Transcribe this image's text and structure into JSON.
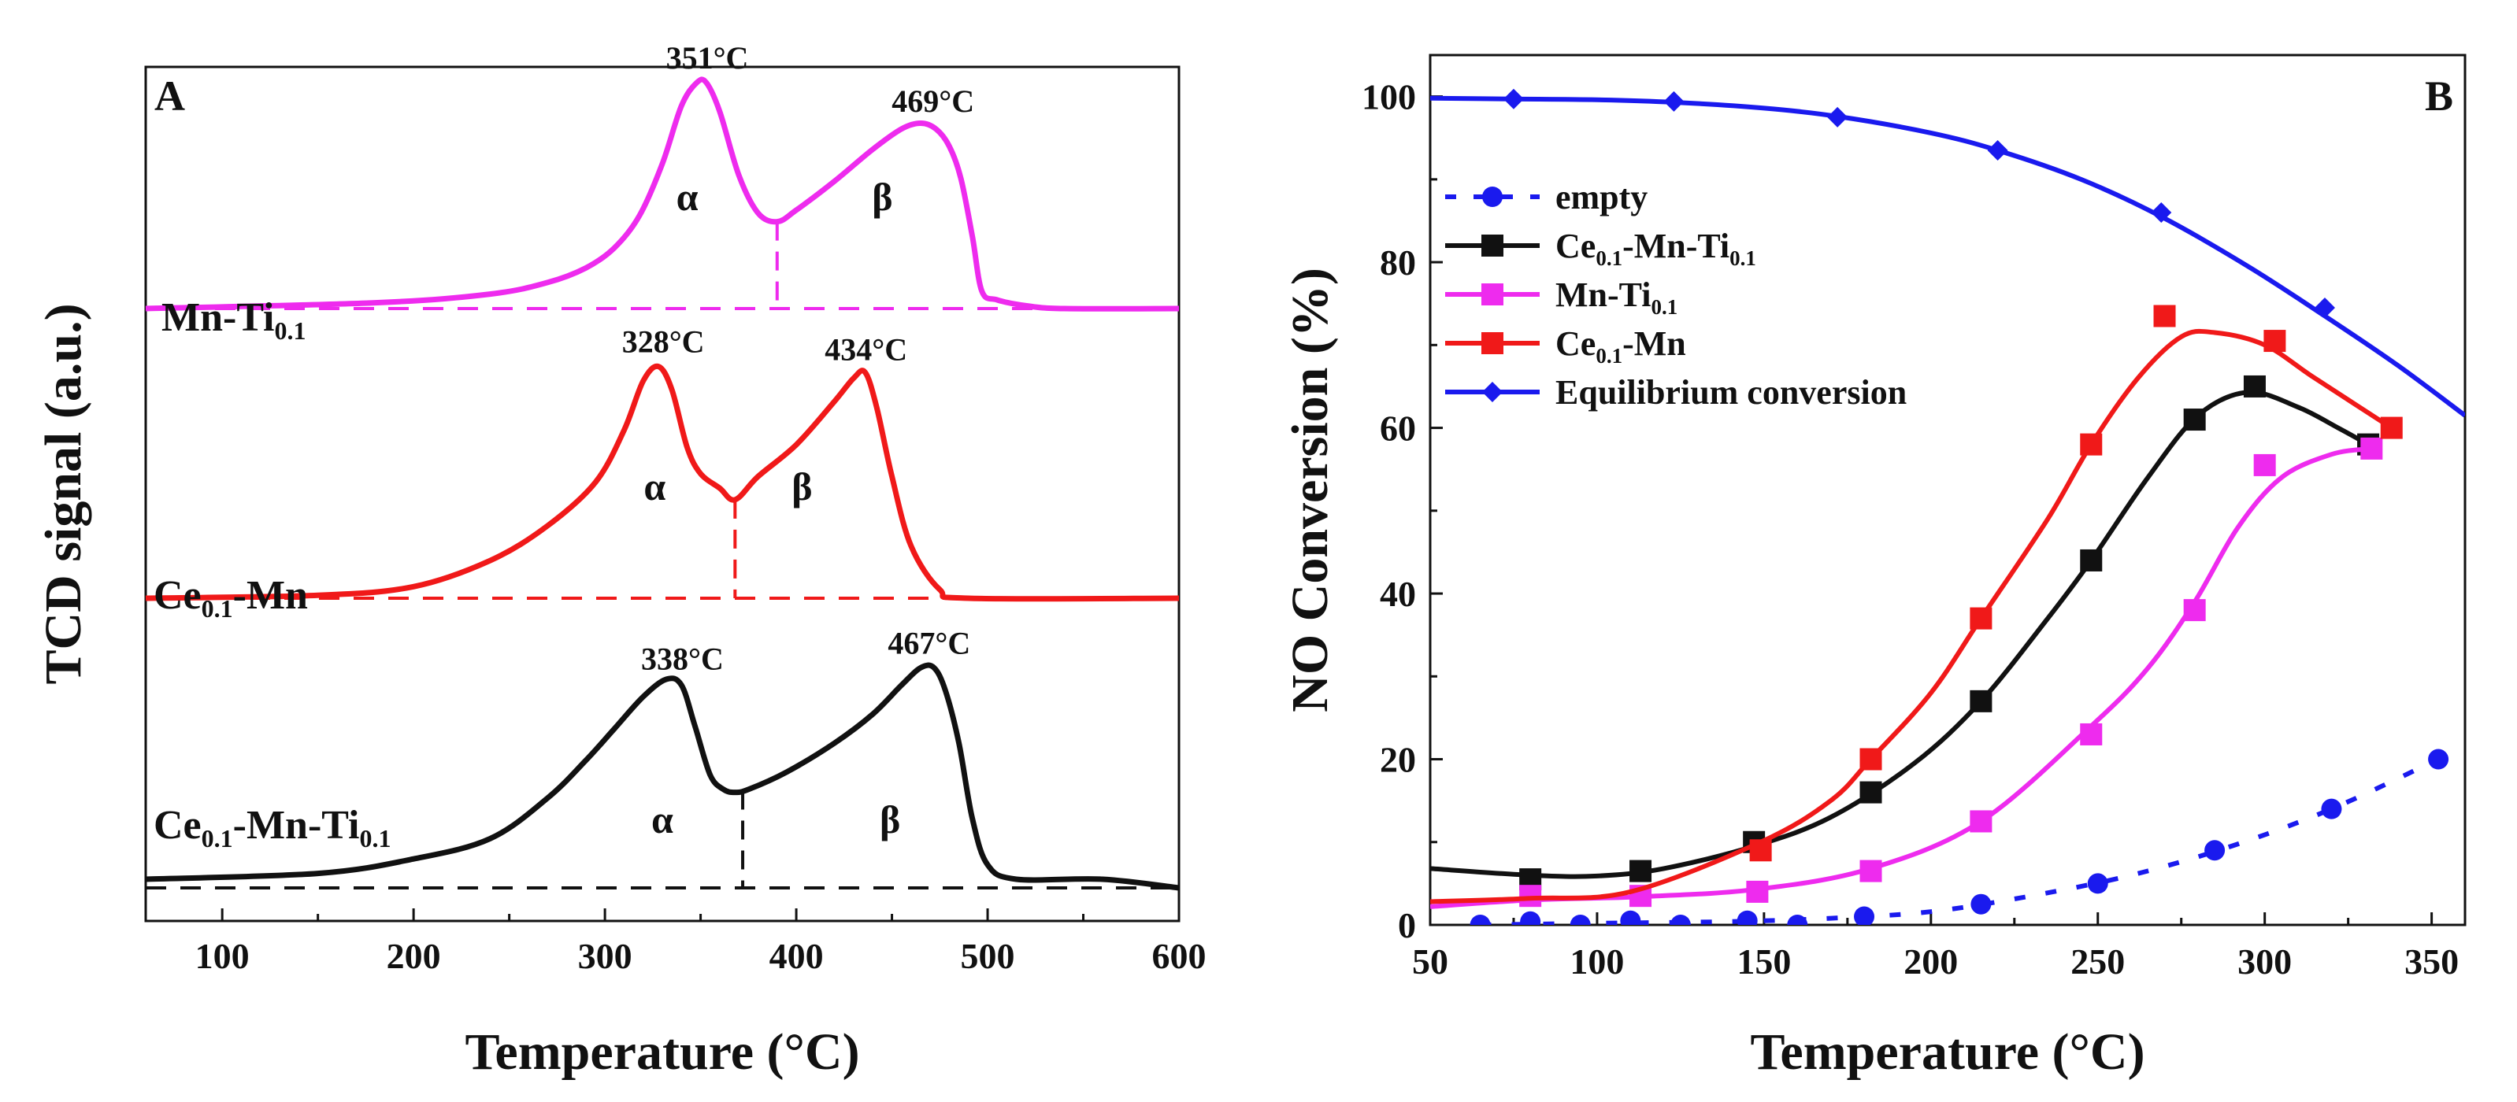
{
  "chart_data": [
    {
      "type": "line",
      "panel_label": "A",
      "title": "",
      "xlabel": "Temperature (°C)",
      "ylabel": "TCD signal (a.u.)",
      "xlim": [
        60,
        600
      ],
      "ylim": [
        0,
        3
      ],
      "xticks": [
        100,
        200,
        300,
        400,
        500,
        600
      ],
      "yticks": [],
      "series": [
        {
          "name_main": "Mn-Ti",
          "name_sub": "0.1",
          "name_tail": "",
          "color": "#ee2bee",
          "baseline": 2.0,
          "x": [
            60,
            180,
            240,
            270,
            290,
            305,
            318,
            330,
            340,
            348,
            353,
            360,
            370,
            380,
            390,
            400,
            420,
            440,
            455,
            465,
            473,
            480,
            486,
            492,
            497,
            505,
            520,
            540,
            600
          ],
          "y": [
            2.0,
            2.02,
            2.05,
            2.09,
            2.14,
            2.21,
            2.32,
            2.5,
            2.7,
            2.78,
            2.78,
            2.68,
            2.46,
            2.33,
            2.3,
            2.34,
            2.44,
            2.55,
            2.62,
            2.64,
            2.62,
            2.56,
            2.45,
            2.25,
            2.06,
            2.03,
            2.01,
            2.0,
            2.0
          ],
          "peaks": [
            {
              "x": 351,
              "label": "351°C"
            },
            {
              "x": 469,
              "label": "469°C"
            }
          ],
          "separator_x": 390,
          "greek_labels": [
            {
              "x": 343,
              "text": "α"
            },
            {
              "x": 445,
              "text": "β"
            }
          ]
        },
        {
          "name_main": "Ce",
          "name_sub": "0.1",
          "name_tail": "-Mn",
          "color": "#f01919",
          "baseline": 1.0,
          "x": [
            60,
            150,
            200,
            240,
            270,
            295,
            310,
            320,
            328,
            335,
            343,
            350,
            360,
            368,
            380,
            400,
            420,
            430,
            436,
            442,
            450,
            460,
            475,
            490,
            600
          ],
          "y": [
            1.0,
            1.01,
            1.04,
            1.13,
            1.25,
            1.4,
            1.58,
            1.75,
            1.8,
            1.72,
            1.52,
            1.43,
            1.38,
            1.34,
            1.42,
            1.53,
            1.68,
            1.76,
            1.78,
            1.66,
            1.42,
            1.18,
            1.03,
            1.0,
            1.0
          ],
          "peaks": [
            {
              "x": 328,
              "label": "328°C"
            },
            {
              "x": 434,
              "label": "434°C"
            }
          ],
          "separator_x": 368,
          "greek_labels": [
            {
              "x": 326,
              "text": "α"
            },
            {
              "x": 403,
              "text": "β"
            }
          ]
        },
        {
          "name_main": "Ce",
          "name_sub": "0.1",
          "name_tail": "-Mn-Ti",
          "name_sub2": "0.1",
          "color": "#111111",
          "baseline": 0.0,
          "x": [
            60,
            150,
            200,
            240,
            270,
            290,
            305,
            320,
            332,
            340,
            347,
            355,
            362,
            368,
            375,
            395,
            420,
            440,
            455,
            465,
            472,
            478,
            485,
            492,
            500,
            515,
            560,
            600
          ],
          "y": [
            0.03,
            0.05,
            0.1,
            0.17,
            0.31,
            0.44,
            0.55,
            0.66,
            0.72,
            0.7,
            0.56,
            0.39,
            0.34,
            0.33,
            0.34,
            0.4,
            0.5,
            0.6,
            0.7,
            0.76,
            0.76,
            0.68,
            0.5,
            0.24,
            0.08,
            0.03,
            0.03,
            0.0
          ],
          "peaks": [
            {
              "x": 338,
              "label": "338°C"
            },
            {
              "x": 467,
              "label": "467°C"
            }
          ],
          "separator_x": 372,
          "greek_labels": [
            {
              "x": 330,
              "text": "α"
            },
            {
              "x": 449,
              "text": "β"
            }
          ]
        }
      ]
    },
    {
      "type": "line",
      "panel_label": "B",
      "title": "",
      "xlabel": "Temperature (°C)",
      "ylabel": "NO Conversion (%)",
      "xlim": [
        50,
        360
      ],
      "ylim": [
        0,
        105
      ],
      "xticks": [
        50,
        100,
        150,
        200,
        250,
        300,
        350
      ],
      "yticks": [
        0,
        20,
        40,
        60,
        80,
        100
      ],
      "legend_position": "upper-left",
      "series": [
        {
          "name_main": "empty",
          "name_sub": "",
          "name_tail": "",
          "color": "#1a1aee",
          "marker": "circle",
          "line_style": "dashed",
          "points_x": [
            65,
            80,
            95,
            110,
            125,
            145,
            160,
            180,
            215,
            250,
            285,
            320,
            352
          ],
          "points_y": [
            0,
            0.4,
            0,
            0.5,
            0,
            0.5,
            0,
            1,
            2.5,
            5,
            9,
            14,
            20
          ],
          "curve_x": [
            65,
            100,
            140,
            170,
            200,
            230,
            260,
            290,
            320,
            352
          ],
          "curve_y": [
            0,
            0.2,
            0.4,
            0.8,
            1.6,
            3.5,
            6,
            9.5,
            14,
            20
          ]
        },
        {
          "name_main": "Ce",
          "name_sub": "0.1",
          "name_tail": "-Mn-Ti",
          "name_sub2": "0.1",
          "color": "#111111",
          "marker": "square",
          "line_style": "solid",
          "points_x": [
            80,
            113,
            147,
            182,
            215,
            248,
            279,
            297,
            331
          ],
          "points_y": [
            5.5,
            6.5,
            10,
            16,
            27,
            44,
            61,
            65,
            58
          ],
          "curve_x": [
            50,
            80,
            100,
            120,
            147,
            170,
            195,
            215,
            235,
            248,
            265,
            280,
            295,
            310,
            322,
            331
          ],
          "curve_y": [
            6.8,
            6,
            5.9,
            6.8,
            9.5,
            13,
            19.5,
            27,
            37,
            44,
            54,
            61.5,
            64.3,
            62.5,
            60,
            58
          ]
        },
        {
          "name_main": "Mn-Ti",
          "name_sub": "0.1",
          "name_tail": "",
          "color": "#ee2bee",
          "marker": "square",
          "line_style": "solid",
          "points_x": [
            80,
            113,
            148,
            182,
            215,
            248,
            279,
            300,
            332
          ],
          "points_y": [
            3.5,
            3.5,
            4,
            6.5,
            12.5,
            23,
            38,
            55.5,
            57.5
          ],
          "curve_x": [
            50,
            80,
            113,
            148,
            182,
            215,
            248,
            265,
            279,
            292,
            305,
            320,
            332
          ],
          "curve_y": [
            2.2,
            3,
            3.4,
            4.3,
            6.8,
            12.5,
            24,
            31,
            39,
            48,
            54,
            56.8,
            57.5
          ]
        },
        {
          "name_main": "Ce",
          "name_sub": "0.1",
          "name_tail": "-Mn",
          "color": "#f01919",
          "marker": "square",
          "line_style": "solid",
          "points_x": [
            149,
            182,
            215,
            248,
            270,
            303,
            338
          ],
          "points_y": [
            9,
            20,
            37,
            58,
            73.5,
            70.5,
            60
          ],
          "curve_x": [
            50,
            80,
            110,
            149,
            170,
            182,
            200,
            215,
            235,
            248,
            262,
            275,
            285,
            300,
            315,
            338
          ],
          "curve_y": [
            2.8,
            3.2,
            4,
            10,
            15,
            20,
            28,
            37,
            49,
            58,
            66,
            71,
            71.5,
            70,
            66,
            60
          ]
        },
        {
          "name_main": "Equilibrium conversion",
          "name_sub": "",
          "name_tail": "",
          "color": "#1a1aee",
          "marker": "diamond",
          "line_style": "solid",
          "points_x": [
            75,
            123,
            172,
            220,
            269,
            318
          ],
          "points_y": [
            99.7,
            99.4,
            97.5,
            93.5,
            86,
            74.5
          ],
          "curve_x": [
            50,
            75,
            100,
            123,
            150,
            172,
            200,
            220,
            245,
            269,
            295,
            318,
            340,
            360
          ],
          "curve_y": [
            99.8,
            99.7,
            99.6,
            99.3,
            98.6,
            97.6,
            95.6,
            93.5,
            90,
            85.5,
            79.5,
            73.5,
            67.5,
            61.5
          ]
        }
      ]
    }
  ]
}
